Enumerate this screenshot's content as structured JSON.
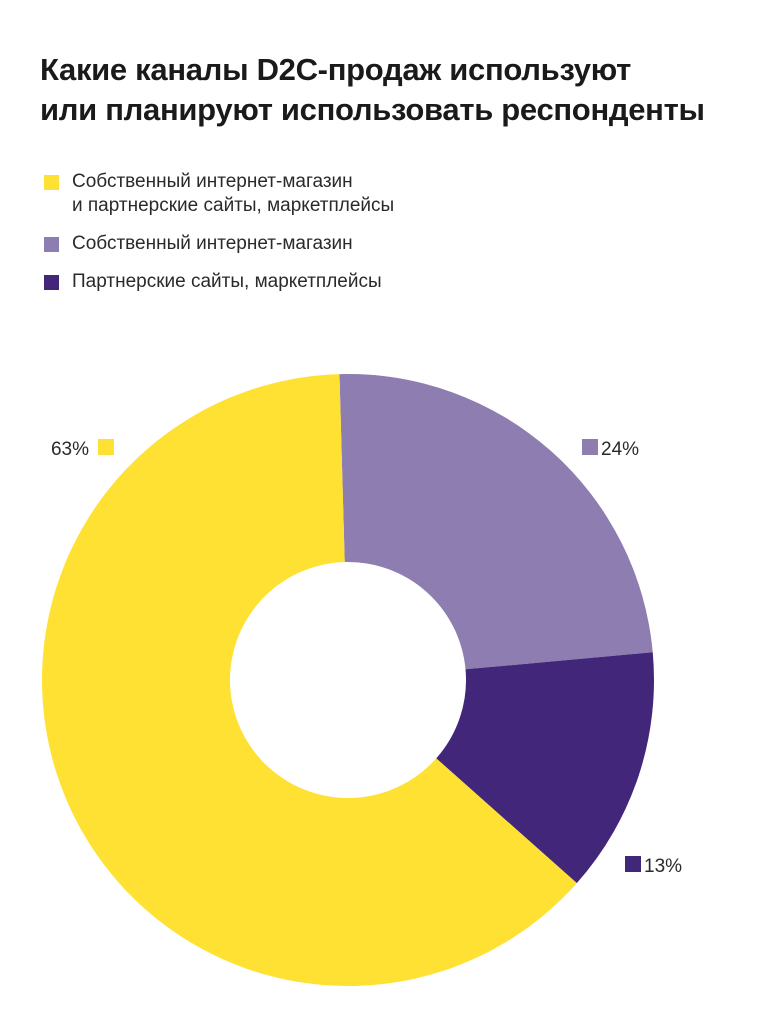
{
  "title_lines": [
    "Какие каналы D2C-продаж используют",
    "или планируют использовать респонденты"
  ],
  "colors": {
    "yellow": "#FFE134",
    "lavender": "#8D7DB0",
    "purple": "#42267A"
  },
  "legend": [
    {
      "lines": [
        "Собственный интернет-магазин",
        "и партнерские сайты, маркетплейсы"
      ],
      "color": "#FFE134"
    },
    {
      "lines": [
        "Собственный интернет-магазин"
      ],
      "color": "#8D7DB0"
    },
    {
      "lines": [
        "Партнерские сайты, маркетплейсы"
      ],
      "color": "#42267A"
    }
  ],
  "chart_data": {
    "type": "pie",
    "donut": true,
    "categories": [
      "Собственный интернет-магазин и партнерские сайты, маркетплейсы",
      "Собственный интернет-магазин",
      "Партнерские сайты, маркетплейсы"
    ],
    "values": [
      63,
      24,
      13
    ],
    "labels": [
      "63%",
      "24%",
      "13%"
    ],
    "colors": [
      "#FFE134",
      "#8D7DB0",
      "#42267A"
    ]
  }
}
